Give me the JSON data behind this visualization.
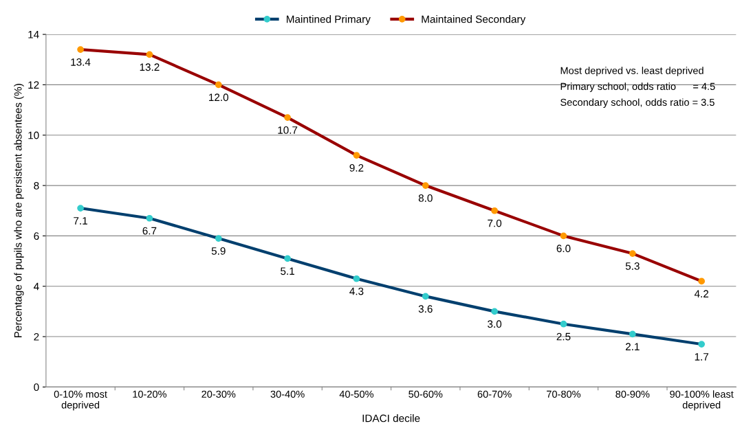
{
  "chart_data": {
    "type": "line",
    "xlabel": "IDACI decile",
    "ylabel": "Percentage of pupils who are persistent absentees (%)",
    "categories": [
      "0-10% most\ndeprived",
      "10-20%",
      "20-30%",
      "30-40%",
      "40-50%",
      "50-60%",
      "60-70%",
      "70-80%",
      "80-90%",
      "90-100% least\ndeprived"
    ],
    "series": [
      {
        "name": "Maintined Primary",
        "color": "#003f6e",
        "colors": [
          "#33cccc",
          "#33cccc",
          "#33cccc",
          "#33cccc",
          "#33cccc",
          "#33cccc",
          "#33cccc",
          "#33cccc",
          "#33cccc",
          "#33cccc"
        ],
        "values": [
          7.1,
          6.7,
          5.9,
          5.1,
          4.3,
          3.6,
          3.0,
          2.5,
          2.1,
          1.7
        ],
        "value_labels": [
          "7.1",
          "6.7",
          "5.9",
          "5.1",
          "4.3",
          "3.6",
          "3.0",
          "2.5",
          "2.1",
          "1.7"
        ]
      },
      {
        "name": "Maintained Secondary",
        "color": "#990000",
        "colors": [
          "#ff9900",
          "#ff9900",
          "#ff9900",
          "#ff9900",
          "#ff9900",
          "#ff9900",
          "#ff9900",
          "#ff9900",
          "#ff9900",
          "#ff9900"
        ],
        "values": [
          13.4,
          13.2,
          12.0,
          10.7,
          9.2,
          8.0,
          7.0,
          6.0,
          5.3,
          4.2
        ],
        "value_labels": [
          "13.4",
          "13.2",
          "12.0",
          "10.7",
          "9.2",
          "8.0",
          "7.0",
          "6.0",
          "5.3",
          "4.2"
        ]
      }
    ],
    "ylim": [
      0,
      14
    ],
    "yticks": [
      0,
      2,
      4,
      6,
      8,
      10,
      12,
      14
    ],
    "grid": "y",
    "legend": "top",
    "marker": "circle",
    "line_style": "solid",
    "annotations": [
      "Most deprived vs. least deprived",
      "Primary school, odds ratio      = 4.5",
      "Secondary school, odds ratio = 3.5"
    ]
  }
}
